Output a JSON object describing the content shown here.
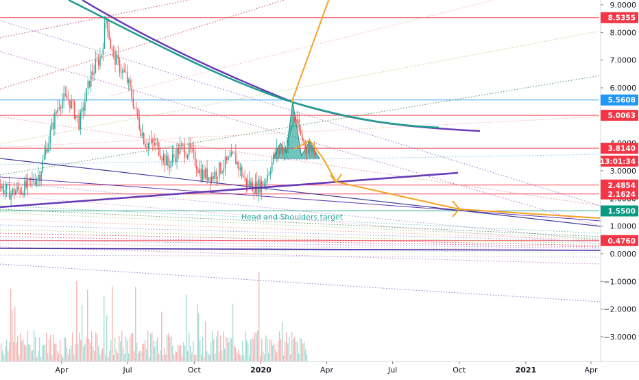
{
  "chart_data": {
    "type": "candlestick",
    "annotation": "Head and Shoulders target",
    "y_axis": {
      "range": [
        -3.7,
        9.3
      ],
      "ticks": [
        {
          "value": 9.0,
          "label": "9.0000"
        },
        {
          "value": 8.0,
          "label": "8.0000"
        },
        {
          "value": 7.0,
          "label": "7.0000"
        },
        {
          "value": 6.0,
          "label": "6.0000"
        },
        {
          "value": 5.0,
          "label": "5.0000"
        },
        {
          "value": 4.0,
          "label": "4.0000"
        },
        {
          "value": 3.0,
          "label": "3.0000"
        },
        {
          "value": 2.0,
          "label": "2.0000"
        },
        {
          "value": 1.0,
          "label": "1.0000"
        },
        {
          "value": 0.0,
          "label": "0.0000"
        },
        {
          "value": -1.0,
          "label": "−1.0000"
        },
        {
          "value": -2.0,
          "label": "−2.0000"
        },
        {
          "value": -3.0,
          "label": "−3.0000"
        }
      ]
    },
    "x_axis": {
      "range": [
        "2019-01-01",
        "2021-04-30"
      ],
      "ticks": [
        {
          "date": "2019-04-01",
          "label": "Apr",
          "bold": false
        },
        {
          "date": "2019-07-01",
          "label": "Jul",
          "bold": false
        },
        {
          "date": "2019-10-01",
          "label": "Oct",
          "bold": false
        },
        {
          "date": "2020-01-01",
          "label": "2020",
          "bold": true
        },
        {
          "date": "2020-04-01",
          "label": "Apr",
          "bold": false
        },
        {
          "date": "2020-07-01",
          "label": "Jul",
          "bold": false
        },
        {
          "date": "2020-10-01",
          "label": "Oct",
          "bold": false
        },
        {
          "date": "2021-01-01",
          "label": "2021",
          "bold": true
        },
        {
          "date": "2021-04-01",
          "label": "Apr",
          "bold": false
        }
      ]
    },
    "price_labels": [
      {
        "value": 8.5355,
        "label": "8.5355",
        "color": "#f23645"
      },
      {
        "value": 5.5608,
        "label": "5.5608",
        "color": "#2196f3"
      },
      {
        "value": 5.0063,
        "label": "5.0063",
        "color": "#f23645"
      },
      {
        "value": 3.814,
        "label": "3.8140",
        "color": "#f23645"
      },
      {
        "value": 3.35,
        "label": "13:01:34",
        "color": "#f23645"
      },
      {
        "value": 2.4854,
        "label": "2.4854",
        "color": "#f23645"
      },
      {
        "value": 2.1624,
        "label": "2.1624",
        "color": "#f23645"
      },
      {
        "value": 1.55,
        "label": "1.5500",
        "color": "#089981"
      },
      {
        "value": 0.476,
        "label": "0.4760",
        "color": "#f23645"
      }
    ],
    "horizontal_levels": [
      {
        "value": 8.5355,
        "color": "#f23645"
      },
      {
        "value": 5.5608,
        "color": "#2196f3"
      },
      {
        "value": 5.0063,
        "color": "#f23645"
      },
      {
        "value": 3.814,
        "color": "#f23645"
      },
      {
        "value": 2.4854,
        "color": "#f23645"
      },
      {
        "value": 2.1624,
        "color": "#f23645"
      },
      {
        "value": 1.55,
        "color": "#089981"
      },
      {
        "value": 0.476,
        "color": "#f23645"
      }
    ],
    "colors": {
      "up": "#26a69a",
      "down": "#ef5350",
      "projection": "#f7a021",
      "trendline": "#673ab7",
      "curve": "#1e9e8f"
    },
    "price_path": [
      [
        "2019-01-01",
        2.5
      ],
      [
        "2019-01-20",
        2.2
      ],
      [
        "2019-02-10",
        2.4
      ],
      [
        "2019-03-01",
        2.9
      ],
      [
        "2019-03-15",
        4.3
      ],
      [
        "2019-03-28",
        5.5
      ],
      [
        "2019-04-10",
        5.6
      ],
      [
        "2019-04-25",
        4.7
      ],
      [
        "2019-05-10",
        6.4
      ],
      [
        "2019-05-25",
        7.2
      ],
      [
        "2019-06-01",
        8.6
      ],
      [
        "2019-06-08",
        7.3
      ],
      [
        "2019-06-18",
        6.8
      ],
      [
        "2019-06-28",
        6.4
      ],
      [
        "2019-07-05",
        5.8
      ],
      [
        "2019-07-15",
        4.8
      ],
      [
        "2019-07-25",
        4.0
      ],
      [
        "2019-08-10",
        3.9
      ],
      [
        "2019-08-25",
        3.2
      ],
      [
        "2019-09-10",
        3.8
      ],
      [
        "2019-09-25",
        3.7
      ],
      [
        "2019-10-10",
        2.9
      ],
      [
        "2019-10-25",
        2.8
      ],
      [
        "2019-11-10",
        3.2
      ],
      [
        "2019-11-25",
        3.5
      ],
      [
        "2019-12-10",
        2.6
      ],
      [
        "2019-12-25",
        2.4
      ],
      [
        "2020-01-05",
        2.6
      ],
      [
        "2020-01-20",
        3.6
      ],
      [
        "2020-02-05",
        3.9
      ],
      [
        "2020-02-15",
        5.0
      ],
      [
        "2020-02-25",
        4.2
      ],
      [
        "2020-03-05",
        3.8
      ],
      [
        "2020-03-15",
        3.8
      ]
    ],
    "volume_scale": 1.0
  }
}
